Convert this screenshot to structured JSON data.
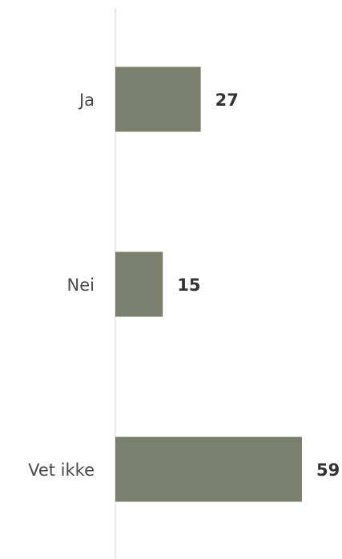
{
  "chart_data": {
    "type": "bar",
    "orientation": "horizontal",
    "categories": [
      "Ja",
      "Nei",
      "Vet ikke"
    ],
    "values": [
      27,
      15,
      59
    ],
    "title": "",
    "xlabel": "",
    "ylabel": "",
    "xlim": [
      0,
      59
    ],
    "grid": false,
    "legend": "none",
    "bar_color": "#7b7f6d",
    "axis_color": "#d0d0d0"
  }
}
